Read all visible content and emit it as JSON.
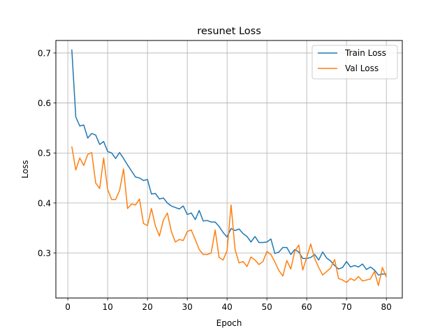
{
  "chart_data": {
    "type": "line",
    "title": "resunet Loss",
    "xlabel": "Epoch",
    "ylabel": "Loss",
    "xlim": [
      -3,
      84
    ],
    "ylim": [
      0.21,
      0.725
    ],
    "xticks": [
      0,
      10,
      20,
      30,
      40,
      50,
      60,
      70,
      80
    ],
    "yticks": [
      0.3,
      0.4,
      0.5,
      0.6,
      0.7
    ],
    "grid": true,
    "legend_position": "top-right",
    "x": [
      1,
      2,
      3,
      4,
      5,
      6,
      7,
      8,
      9,
      10,
      11,
      12,
      13,
      14,
      15,
      16,
      17,
      18,
      19,
      20,
      21,
      22,
      23,
      24,
      25,
      26,
      27,
      28,
      29,
      30,
      31,
      32,
      33,
      34,
      35,
      36,
      37,
      38,
      39,
      40,
      41,
      42,
      43,
      44,
      45,
      46,
      47,
      48,
      49,
      50,
      51,
      52,
      53,
      54,
      55,
      56,
      57,
      58,
      59,
      60,
      61,
      62,
      63,
      64,
      65,
      66,
      67,
      68,
      69,
      70,
      71,
      72,
      73,
      74,
      75,
      76,
      77,
      78,
      79,
      80
    ],
    "series": [
      {
        "name": "Train Loss",
        "color": "#1f77b4",
        "values": [
          0.707,
          0.572,
          0.554,
          0.556,
          0.53,
          0.539,
          0.536,
          0.517,
          0.523,
          0.503,
          0.5,
          0.489,
          0.501,
          0.489,
          0.476,
          0.464,
          0.452,
          0.45,
          0.445,
          0.447,
          0.418,
          0.419,
          0.408,
          0.41,
          0.4,
          0.394,
          0.391,
          0.388,
          0.394,
          0.377,
          0.38,
          0.367,
          0.385,
          0.364,
          0.365,
          0.362,
          0.362,
          0.353,
          0.341,
          0.332,
          0.349,
          0.345,
          0.348,
          0.339,
          0.333,
          0.322,
          0.333,
          0.321,
          0.321,
          0.322,
          0.328,
          0.299,
          0.302,
          0.311,
          0.311,
          0.297,
          0.307,
          0.302,
          0.289,
          0.289,
          0.291,
          0.297,
          0.286,
          0.302,
          0.29,
          0.284,
          0.275,
          0.268,
          0.271,
          0.283,
          0.272,
          0.275,
          0.272,
          0.278,
          0.267,
          0.272,
          0.266,
          0.256,
          0.258,
          0.258
        ]
      },
      {
        "name": "Val Loss",
        "color": "#ff7f0e",
        "values": [
          0.513,
          0.466,
          0.49,
          0.475,
          0.497,
          0.501,
          0.44,
          0.429,
          0.49,
          0.427,
          0.407,
          0.407,
          0.425,
          0.468,
          0.389,
          0.398,
          0.396,
          0.408,
          0.359,
          0.355,
          0.389,
          0.354,
          0.334,
          0.366,
          0.38,
          0.343,
          0.322,
          0.327,
          0.325,
          0.343,
          0.346,
          0.327,
          0.307,
          0.297,
          0.297,
          0.3,
          0.346,
          0.291,
          0.286,
          0.305,
          0.396,
          0.307,
          0.28,
          0.283,
          0.273,
          0.292,
          0.286,
          0.277,
          0.283,
          0.303,
          0.297,
          0.282,
          0.265,
          0.254,
          0.285,
          0.268,
          0.304,
          0.316,
          0.266,
          0.291,
          0.318,
          0.289,
          0.271,
          0.256,
          0.263,
          0.27,
          0.287,
          0.249,
          0.246,
          0.241,
          0.249,
          0.245,
          0.253,
          0.244,
          0.246,
          0.248,
          0.263,
          0.235,
          0.271,
          0.252
        ]
      }
    ]
  }
}
